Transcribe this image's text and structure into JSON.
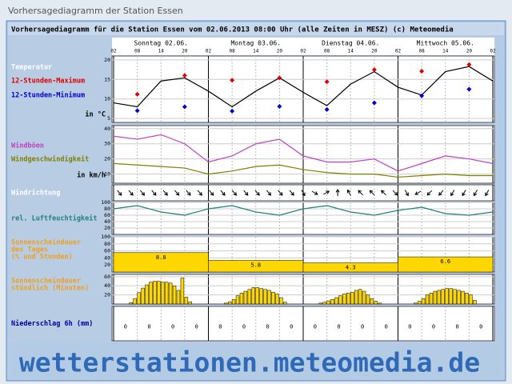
{
  "page_title": "Vorhersagediagramm der Station Essen",
  "header": "Vorhersagediagramm für die Station Essen vom 02.06.2013 08:00 Uhr (alle Zeiten in MESZ)  (c) Meteomedia",
  "watermark": "wetterstationen.meteomedia.de",
  "days": [
    "Sonntag 02.06.",
    "Montag 03.06.",
    "Dienstag 04.06.",
    "Mittwoch 05.06."
  ],
  "chart_data": [
    {
      "type": "line",
      "unit": "in °C",
      "categories": [
        "02",
        "08",
        "14",
        "20",
        "02",
        "08",
        "14",
        "20",
        "02",
        "08",
        "14",
        "20",
        "02",
        "08",
        "14",
        "20",
        "02"
      ],
      "series": [
        {
          "name": "Temperatur",
          "color": "#000000",
          "values": [
            9,
            8,
            14.6,
            15.4,
            12,
            8,
            12,
            15.4,
            11.7,
            8.3,
            13.8,
            17,
            13,
            11,
            17,
            18.3,
            14.6
          ]
        },
        {
          "name": "12-Stunden-Maximum",
          "color": "#e00000",
          "marker": "diamond",
          "values": [
            null,
            11.2,
            null,
            16,
            null,
            14.8,
            null,
            15.4,
            null,
            14.4,
            null,
            17.5,
            null,
            17.1,
            null,
            18.8,
            null
          ]
        },
        {
          "name": "12-Stunden-Minimum",
          "color": "#0000d0",
          "marker": "diamond",
          "values": [
            null,
            7,
            null,
            8,
            null,
            6.9,
            null,
            8.1,
            null,
            7.3,
            null,
            9,
            null,
            10.8,
            null,
            12.5,
            null
          ]
        }
      ],
      "ylim": [
        4,
        21
      ],
      "yticks": [
        5,
        10,
        15,
        20
      ]
    },
    {
      "type": "line",
      "unit": "in km/h",
      "series": [
        {
          "name": "Windböen",
          "color": "#c040c0",
          "values": [
            35,
            33,
            36,
            30,
            18,
            22,
            30,
            33,
            22,
            18,
            18,
            20,
            12,
            17,
            22,
            20,
            17
          ]
        },
        {
          "name": "Windgeschwindigkeit",
          "color": "#808000",
          "values": [
            17,
            16,
            15,
            14,
            10,
            12,
            15,
            16,
            13,
            11,
            10,
            10,
            8,
            9,
            10,
            9,
            9
          ]
        }
      ],
      "ylim": [
        4,
        42
      ],
      "yticks": [
        10,
        20,
        30,
        40
      ]
    },
    {
      "type": "arrows",
      "title": "Windrichtung",
      "title_color": "#ffffff",
      "values": [
        320,
        320,
        320,
        320,
        320,
        320,
        320,
        320,
        320,
        320,
        320,
        320,
        320,
        320,
        320,
        320,
        330,
        300,
        240,
        180,
        150,
        135,
        135,
        135,
        315,
        330,
        60,
        45,
        40,
        30,
        30,
        30,
        30
      ]
    },
    {
      "type": "line",
      "series": [
        {
          "name": "rel. Luftfeuchtigkeit",
          "color": "#208080",
          "values": [
            80,
            90,
            70,
            60,
            80,
            90,
            70,
            60,
            80,
            90,
            70,
            60,
            75,
            85,
            65,
            60,
            70
          ]
        }
      ],
      "ylim": [
        0,
        100
      ],
      "yticks": [
        20,
        40,
        60,
        80,
        100
      ]
    },
    {
      "type": "daybar",
      "title": [
        "Sonnenscheindauer",
        "des Tages",
        "(% und Stunden)"
      ],
      "title_color": "#f0a020",
      "color": "#ffd700",
      "values": [
        55,
        33,
        26,
        43
      ],
      "hours": [
        8.8,
        5.8,
        4.3,
        6.6
      ],
      "ylim": [
        0,
        100
      ],
      "yticks": [
        20,
        40,
        60,
        80,
        100
      ]
    },
    {
      "type": "hourbar",
      "title": [
        "Sonnenscheindauer",
        "stündlich (Minuten)"
      ],
      "title_color": "#f0a020",
      "color": "#ffd700",
      "values": [
        0,
        0,
        0,
        0,
        3,
        12,
        25,
        35,
        42,
        48,
        50,
        50,
        48,
        48,
        46,
        40,
        30,
        57,
        15,
        5,
        0,
        0,
        0,
        0,
        0,
        0,
        0,
        0,
        2,
        5,
        10,
        18,
        24,
        28,
        32,
        36,
        36,
        34,
        32,
        30,
        26,
        22,
        14,
        4,
        0,
        0,
        0,
        0,
        0,
        0,
        0,
        0,
        2,
        4,
        7,
        10,
        14,
        18,
        22,
        24,
        26,
        30,
        32,
        28,
        20,
        12,
        6,
        2,
        0,
        0,
        0,
        0,
        0,
        0,
        0,
        0,
        2,
        6,
        12,
        20,
        24,
        28,
        30,
        32,
        34,
        34,
        32,
        30,
        28,
        24,
        20,
        8,
        0,
        0,
        0,
        0
      ],
      "ylim": [
        0,
        65
      ],
      "yticks": [
        20,
        40,
        60
      ]
    },
    {
      "type": "numbers",
      "title": "Niederschlag 6h (mm)",
      "title_color": "#0000a0",
      "values": [
        0,
        0,
        0,
        0,
        0,
        0,
        0,
        0,
        0,
        0,
        0,
        0,
        0,
        0,
        0,
        0
      ]
    }
  ]
}
